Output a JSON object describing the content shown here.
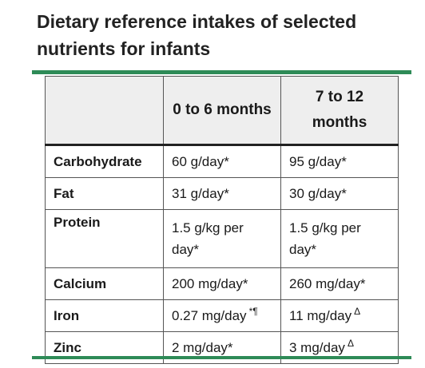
{
  "title": "Dietary reference intakes of selected nutrients for infants",
  "colors": {
    "accent_rule": "#2e8b57",
    "header_bg": "#eeeeee",
    "border": "#555555"
  },
  "table": {
    "columns": [
      "",
      "0 to 6 months",
      "7 to 12 months"
    ],
    "rows": [
      {
        "nutrient": "Carbohydrate",
        "infant_0_6": "60 g/day*",
        "infant_0_6_mark": "",
        "infant_7_12": "95 g/day*",
        "infant_7_12_mark": ""
      },
      {
        "nutrient": "Fat",
        "infant_0_6": "31 g/day*",
        "infant_0_6_mark": "",
        "infant_7_12": "30 g/day*",
        "infant_7_12_mark": ""
      },
      {
        "nutrient": "Protein",
        "infant_0_6": "1.5 g/kg per day*",
        "infant_0_6_mark": "",
        "infant_7_12": "1.5 g/kg per day*",
        "infant_7_12_mark": ""
      },
      {
        "nutrient": "Calcium",
        "infant_0_6": "200 mg/day*",
        "infant_0_6_mark": "",
        "infant_7_12": "260 mg/day*",
        "infant_7_12_mark": ""
      },
      {
        "nutrient": "Iron",
        "infant_0_6": "0.27 mg/day",
        "infant_0_6_mark": "*¶",
        "infant_7_12": "11 mg/day",
        "infant_7_12_mark": "Δ"
      },
      {
        "nutrient": "Zinc",
        "infant_0_6": "2 mg/day*",
        "infant_0_6_mark": "",
        "infant_7_12": "3 mg/day",
        "infant_7_12_mark": "Δ"
      }
    ]
  }
}
